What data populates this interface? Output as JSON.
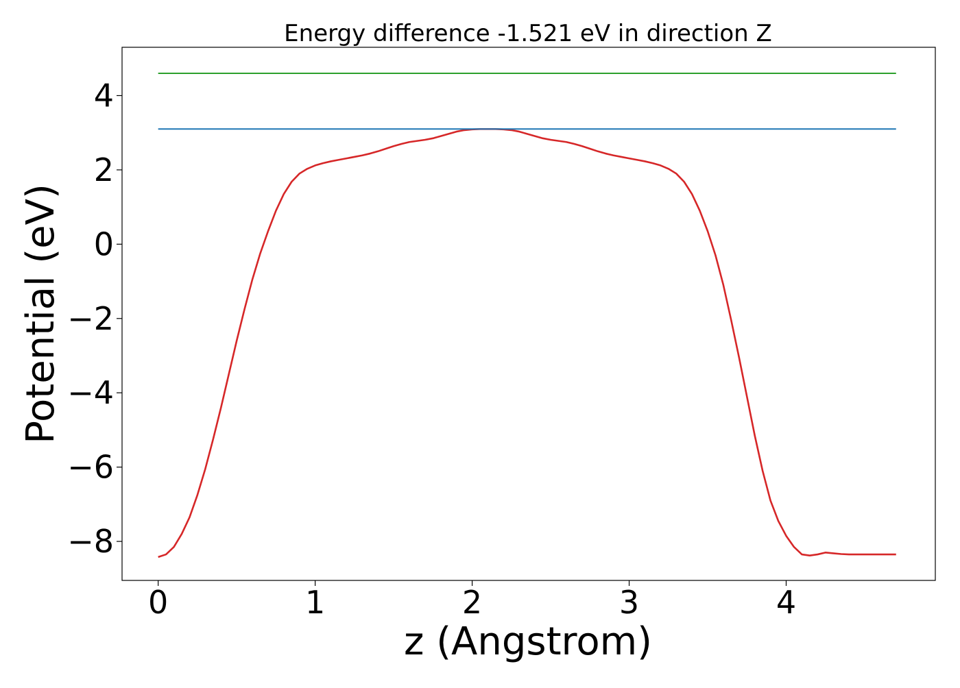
{
  "chart_data": {
    "type": "line",
    "title": "Energy difference -1.521 eV in direction Z",
    "xlabel": "z (Angstrom)",
    "ylabel": "Potential (eV)",
    "xlim": [
      -0.23,
      4.95
    ],
    "ylim": [
      -9.05,
      5.3
    ],
    "xticks": [
      0,
      1,
      2,
      3,
      4
    ],
    "xtick_labels": [
      "0",
      "1",
      "2",
      "3",
      "4"
    ],
    "yticks": [
      -8,
      -6,
      -4,
      -2,
      0,
      2,
      4
    ],
    "ytick_labels": [
      "−8",
      "−6",
      "−4",
      "−2",
      "0",
      "2",
      "4"
    ],
    "grid": false,
    "series": [
      {
        "color": "#d62728",
        "x": [
          0.0,
          0.05,
          0.1,
          0.15,
          0.2,
          0.25,
          0.3,
          0.35,
          0.4,
          0.45,
          0.5,
          0.55,
          0.6,
          0.65,
          0.7,
          0.75,
          0.8,
          0.85,
          0.9,
          0.95,
          1.0,
          1.05,
          1.1,
          1.15,
          1.2,
          1.25,
          1.3,
          1.35,
          1.4,
          1.45,
          1.5,
          1.55,
          1.6,
          1.65,
          1.7,
          1.75,
          1.8,
          1.85,
          1.9,
          1.95,
          2.0,
          2.05,
          2.1,
          2.15,
          2.2,
          2.25,
          2.3,
          2.35,
          2.4,
          2.45,
          2.5,
          2.55,
          2.6,
          2.65,
          2.7,
          2.75,
          2.8,
          2.85,
          2.9,
          2.95,
          3.0,
          3.05,
          3.1,
          3.15,
          3.2,
          3.25,
          3.3,
          3.35,
          3.4,
          3.45,
          3.5,
          3.55,
          3.6,
          3.65,
          3.7,
          3.75,
          3.8,
          3.85,
          3.9,
          3.95,
          4.0,
          4.05,
          4.1,
          4.15,
          4.2,
          4.25,
          4.3,
          4.35,
          4.4,
          4.45,
          4.5,
          4.55,
          4.6,
          4.65,
          4.7
        ],
        "y": [
          -8.42,
          -8.35,
          -8.15,
          -7.8,
          -7.35,
          -6.75,
          -6.05,
          -5.25,
          -4.4,
          -3.5,
          -2.6,
          -1.75,
          -0.95,
          -0.25,
          0.35,
          0.9,
          1.35,
          1.68,
          1.9,
          2.03,
          2.12,
          2.18,
          2.23,
          2.27,
          2.31,
          2.35,
          2.39,
          2.44,
          2.5,
          2.57,
          2.64,
          2.7,
          2.75,
          2.78,
          2.81,
          2.85,
          2.91,
          2.97,
          3.03,
          3.07,
          3.09,
          3.1,
          3.1,
          3.1,
          3.09,
          3.07,
          3.03,
          2.97,
          2.91,
          2.85,
          2.81,
          2.78,
          2.75,
          2.7,
          2.64,
          2.57,
          2.5,
          2.44,
          2.39,
          2.35,
          2.31,
          2.27,
          2.23,
          2.18,
          2.12,
          2.03,
          1.9,
          1.68,
          1.35,
          0.9,
          0.35,
          -0.3,
          -1.1,
          -2.05,
          -3.05,
          -4.1,
          -5.15,
          -6.1,
          -6.9,
          -7.45,
          -7.85,
          -8.15,
          -8.35,
          -8.38,
          -8.35,
          -8.3,
          -8.32,
          -8.34,
          -8.35,
          -8.35,
          -8.35,
          -8.35,
          -8.35,
          -8.35,
          -8.35
        ]
      },
      {
        "color": "#1f77b4",
        "x": [
          0.0,
          4.7
        ],
        "y": [
          3.1,
          3.1
        ]
      },
      {
        "color": "#2ca02c",
        "x": [
          0.0,
          4.7
        ],
        "y": [
          4.6,
          4.6
        ]
      }
    ]
  }
}
